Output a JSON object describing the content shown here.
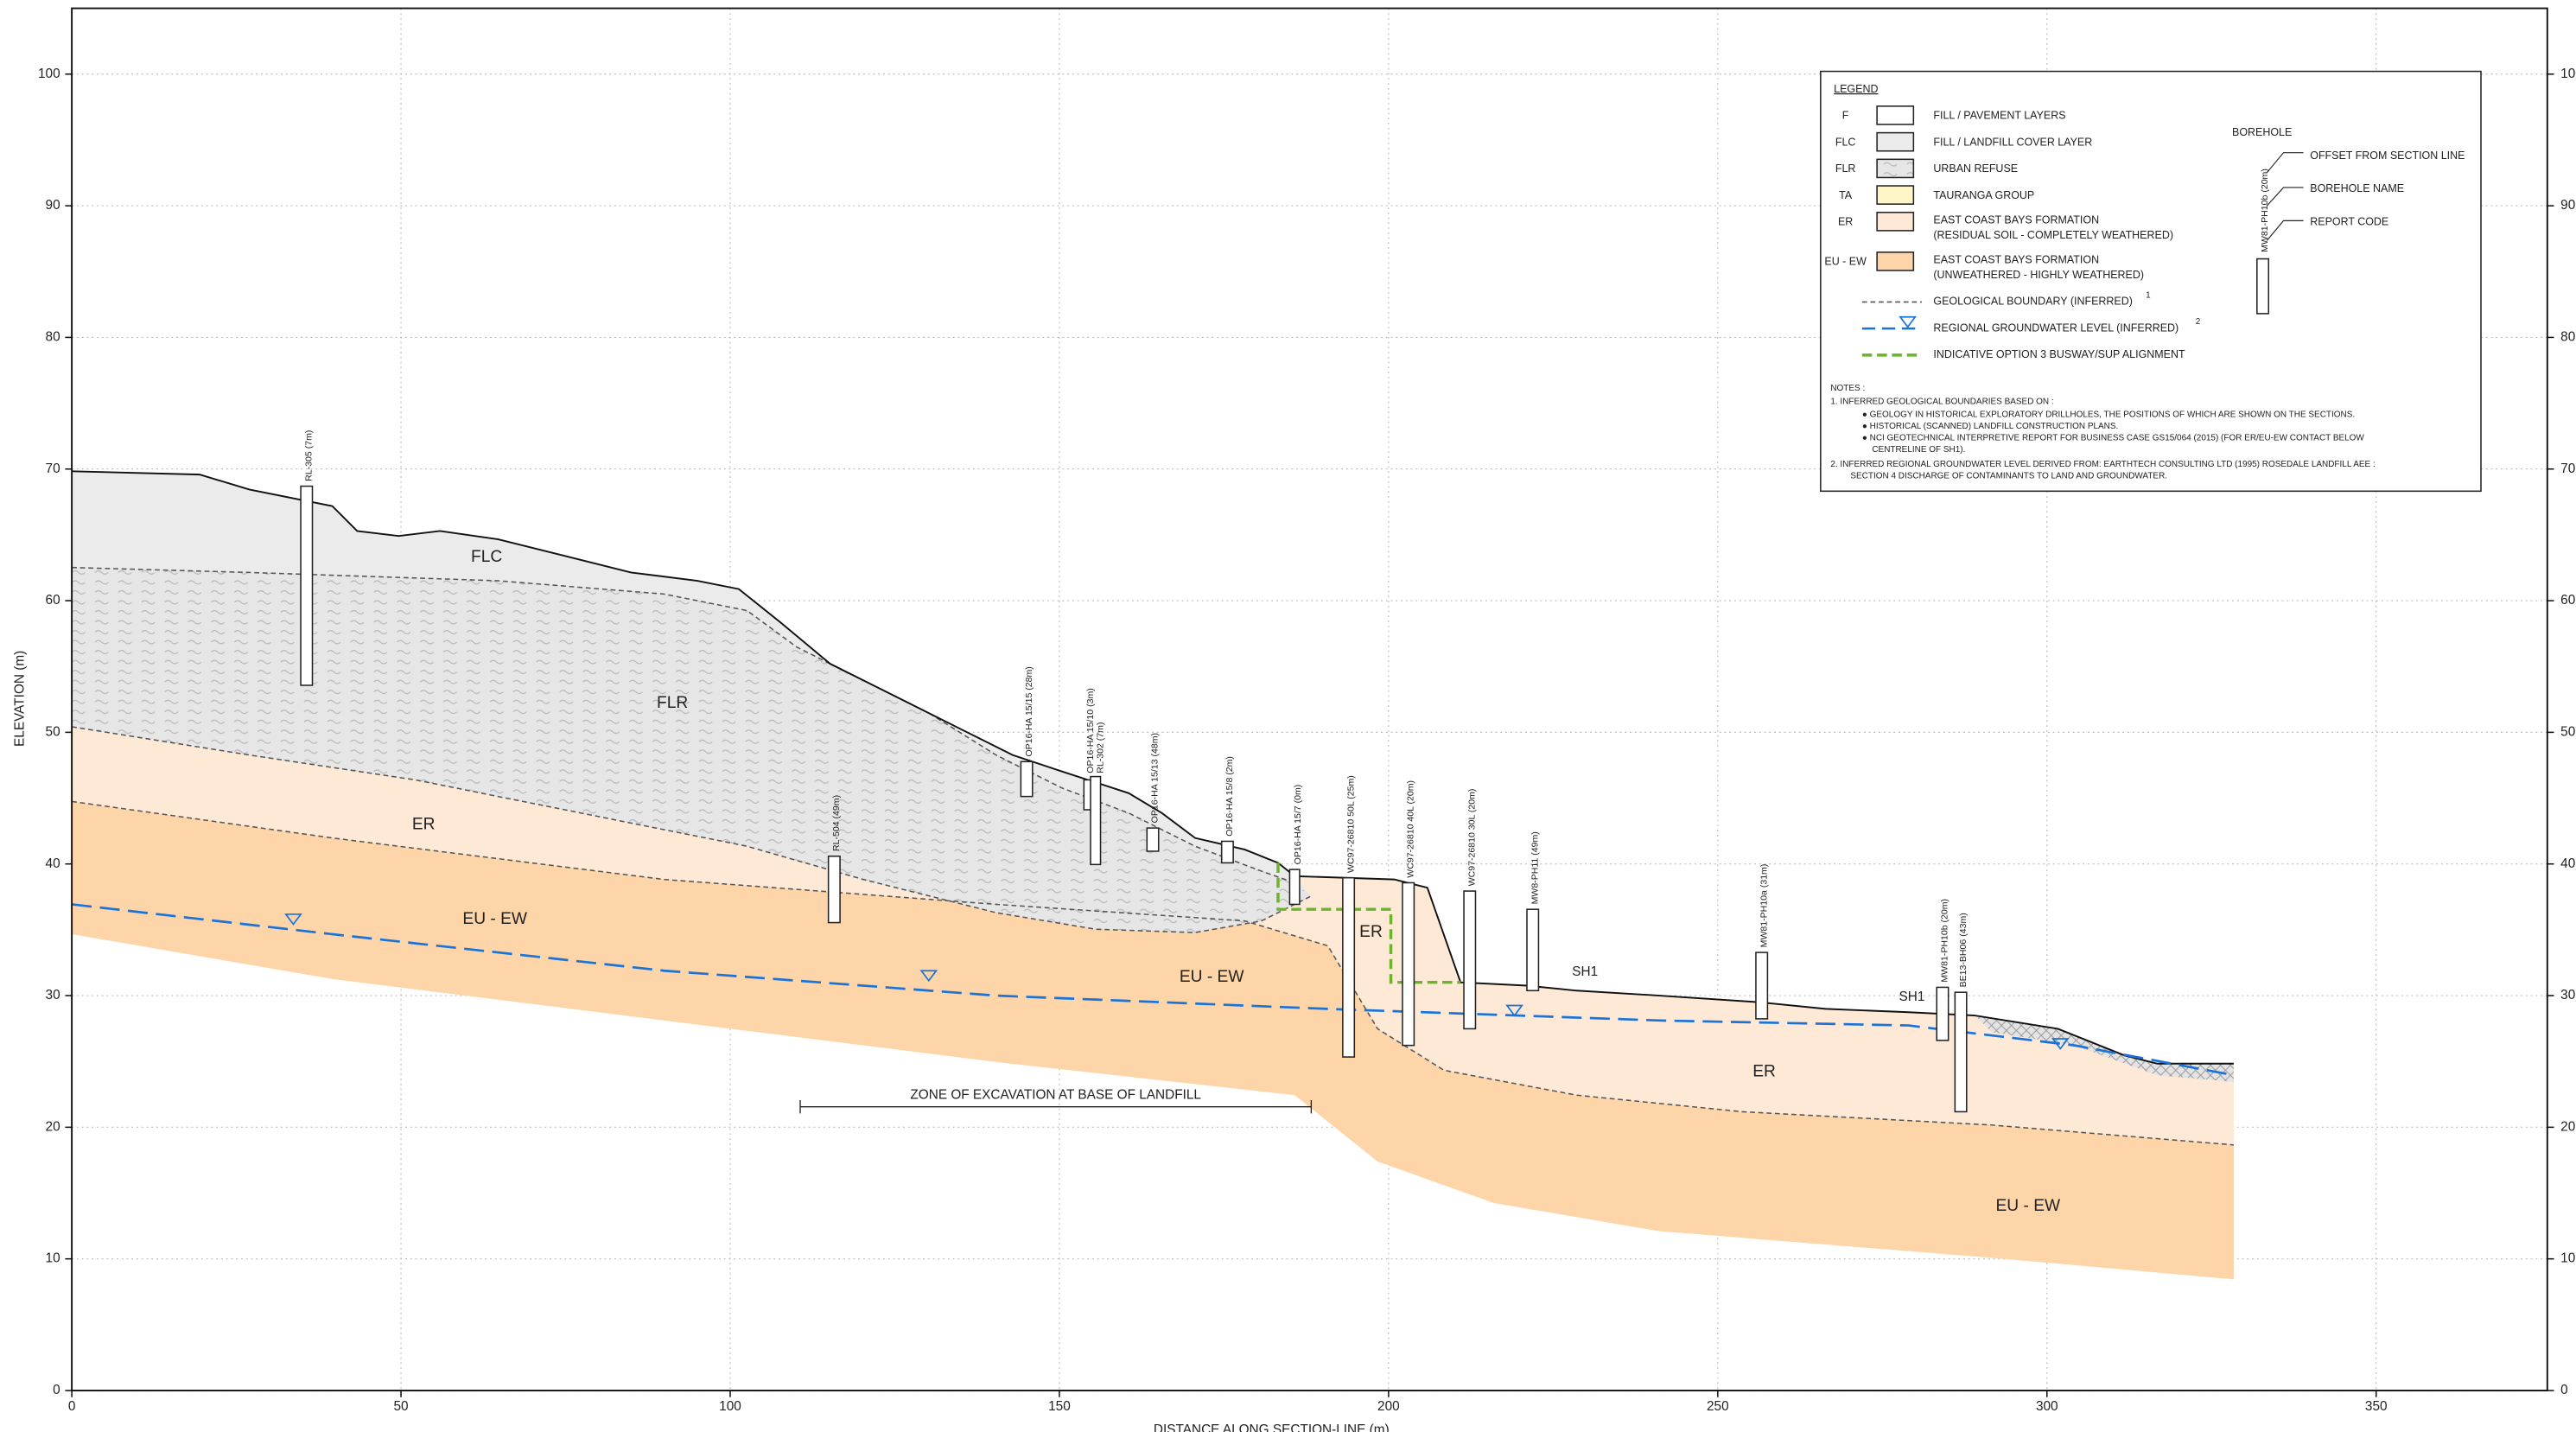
{
  "axes": {
    "x_label": "DISTANCE ALONG SECTION-LINE (m)",
    "y_label": "ELEVATION (m)",
    "xlim": [
      0,
      376
    ],
    "xticks": [
      0,
      50,
      100,
      150,
      200,
      250,
      300,
      350
    ],
    "ylim": [
      0,
      105
    ],
    "yticks": [
      0,
      10,
      20,
      30,
      40,
      50,
      60,
      70,
      80,
      90,
      100
    ],
    "grid": true
  },
  "layer_labels": [
    "FLC",
    "FLR",
    "ER",
    "EU - EW",
    "EU - EW",
    "ER",
    "SH1",
    "SH1",
    "ER",
    "EU - EW"
  ],
  "annotation": "ZONE OF EXCAVATION AT BASE OF LANDFILL",
  "boreholes": [
    "RL-305 (7m)",
    "OP16-HA 15/15 (28m)",
    "OP16-HA 15/10 (3m)",
    "RL-302 (7m)",
    "OP16-HA 15/13 (48m)",
    "OP16-HA 15/8 (2m)",
    "OP16-HA 15/7 (0m)",
    "RL-504 (49m)",
    "WC97-26810 50L (25m)",
    "WC97-26810 40L (20m)",
    "WC97-26810 30L (20m)",
    "MW8-PH11 (49m)",
    "MW81-PH10a (31m)",
    "MW81-PH10b (20m)",
    "BE13-BH06 (43m)"
  ],
  "legend": {
    "title": "LEGEND",
    "layers": [
      {
        "code": "F",
        "lines": [
          "FILL / PAVEMENT LAYERS"
        ]
      },
      {
        "code": "FLC",
        "lines": [
          "FILL / LANDFILL COVER LAYER"
        ]
      },
      {
        "code": "FLR",
        "lines": [
          "URBAN REFUSE"
        ]
      },
      {
        "code": "TA",
        "lines": [
          "TAURANGA GROUP"
        ]
      },
      {
        "code": "ER",
        "lines": [
          "EAST COAST BAYS FORMATION",
          "(RESIDUAL SOIL - COMPLETELY WEATHERED)"
        ]
      },
      {
        "code": "EU - EW",
        "lines": [
          "EAST COAST BAYS FORMATION",
          "(UNWEATHERED - HIGHLY WEATHERED)"
        ]
      }
    ],
    "lines": [
      {
        "text": "GEOLOGICAL BOUNDARY (INFERRED)",
        "note": "1"
      },
      {
        "text": "REGIONAL GROUNDWATER LEVEL (INFERRED)",
        "note": "2"
      },
      {
        "text": "INDICATIVE OPTION 3 BUSWAY/SUP ALIGNMENT"
      }
    ],
    "borehole": {
      "title": "BOREHOLE",
      "sample": "MW81-PH10b (20m)",
      "parts": [
        "OFFSET FROM SECTION LINE",
        "BOREHOLE NAME",
        "REPORT CODE"
      ]
    },
    "notes": [
      "NOTES :",
      "1.   INFERRED GEOLOGICAL BOUNDARIES BASED ON :",
      "● GEOLOGY IN HISTORICAL EXPLORATORY DRILLHOLES, THE POSITIONS OF WHICH ARE SHOWN ON THE SECTIONS.",
      "● HISTORICAL (SCANNED) LANDFILL CONSTRUCTION PLANS.",
      "● NCI GEOTECHNICAL INTERPRETIVE REPORT FOR BUSINESS CASE GS15/064 (2015)  (FOR ER/EU-EW CONTACT BELOW",
      "CENTRELINE OF SH1).",
      "2.   INFERRED REGIONAL GROUNDWATER LEVEL DERIVED FROM: EARTHTECH CONSULTING LTD (1995) ROSEDALE LANDFILL AEE :",
      "SECTION 4 DISCHARGE OF CONTAMINANTS TO LAND AND GROUNDWATER."
    ]
  }
}
